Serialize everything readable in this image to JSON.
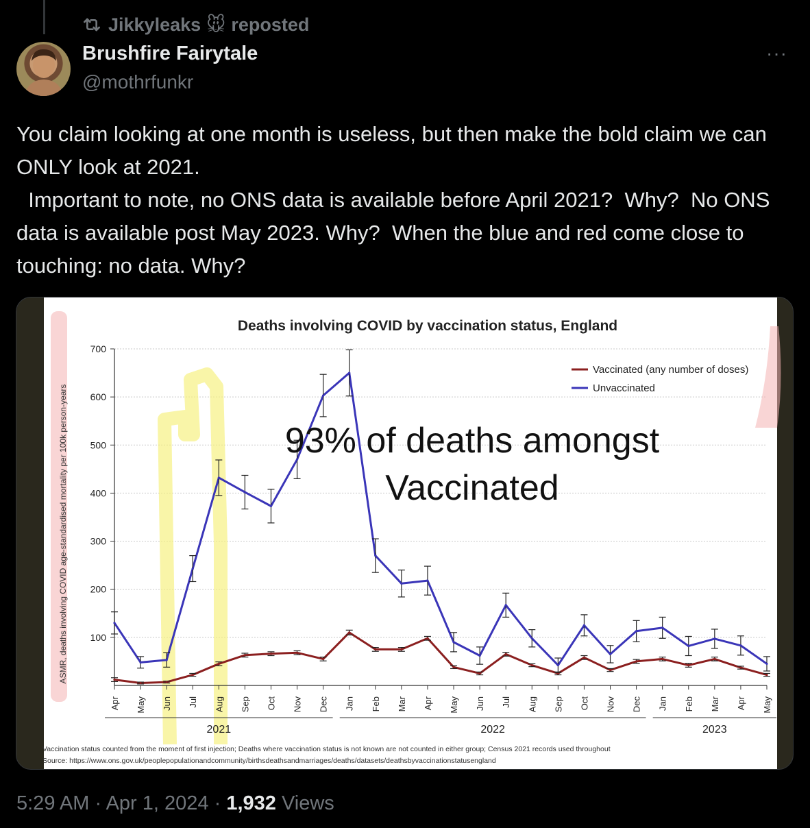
{
  "repost": {
    "icon": "repost-icon",
    "user": "Jikkyleaks",
    "emoji": "🐭",
    "label": "reposted"
  },
  "author": {
    "name": "Brushfire Fairytale",
    "handle": "@mothrfunkr"
  },
  "more_label": "···",
  "tweet_text": "You claim looking at one month is useless, but then make the bold claim we can ONLY look at 2021.\n  Important to note, no ONS data is available before April 2021?  Why?  No ONS data is available post May 2023. Why?  When the blue and red come close to touching: no data. Why?",
  "footer": {
    "time": "5:29 AM",
    "sep1": " · ",
    "date": "Apr 1, 2024",
    "sep2": " · ",
    "views": "1,932",
    "views_label": " Views"
  },
  "chart_data": {
    "type": "line",
    "title": "Deaths involving COVID by vaccination status, England",
    "ylabel": "ASMR, deaths involving COVID age-standardised mortality per 100k person-years",
    "ylim": [
      0,
      700
    ],
    "yticks": [
      "100",
      "200",
      "300",
      "400",
      "500",
      "600",
      "700"
    ],
    "categories": [
      "Apr",
      "May",
      "Jun",
      "Jul",
      "Aug",
      "Sep",
      "Oct",
      "Nov",
      "Dec",
      "Jan",
      "Feb",
      "Mar",
      "Apr",
      "May",
      "Jun",
      "Jul",
      "Aug",
      "Sep",
      "Oct",
      "Nov",
      "Dec",
      "Jan",
      "Feb",
      "Mar",
      "Apr",
      "May"
    ],
    "years": [
      "2021",
      "2022",
      "2023"
    ],
    "legend_position": "top-right",
    "series": [
      {
        "name": "Vaccinated (any number of doses)",
        "color": "#8b1f1f",
        "values": [
          12,
          5,
          7,
          22,
          45,
          63,
          66,
          68,
          55,
          110,
          75,
          75,
          98,
          38,
          25,
          65,
          42,
          25,
          58,
          32,
          50,
          55,
          42,
          55,
          37,
          22
        ]
      },
      {
        "name": "Unvaccinated",
        "color": "#3a35b8",
        "values": [
          130,
          48,
          53,
          243,
          432,
          402,
          373,
          470,
          603,
          650,
          270,
          212,
          218,
          90,
          62,
          167,
          98,
          42,
          125,
          65,
          113,
          120,
          82,
          97,
          83,
          45
        ]
      }
    ],
    "errors": {
      "vaccinated": [
        4,
        2,
        2,
        3,
        4,
        4,
        4,
        4,
        4,
        5,
        4,
        4,
        4,
        3,
        3,
        4,
        3,
        3,
        4,
        3,
        4,
        4,
        4,
        4,
        3,
        3
      ],
      "unvaccinated": [
        23,
        12,
        15,
        27,
        37,
        35,
        35,
        40,
        44,
        48,
        35,
        28,
        30,
        20,
        18,
        25,
        18,
        15,
        22,
        18,
        22,
        22,
        20,
        20,
        20,
        15
      ]
    },
    "annotation": [
      "93% of deaths amongst",
      "Vaccinated"
    ],
    "footnote": "Vaccination status counted from the moment of first injection; Deaths where vaccination status is not known are not counted in either group; Census 2021 records used throughout",
    "source": "Source: https://www.ons.gov.uk/peoplepopulationandcommunity/birthsdeathsandmarriages/deaths/datasets/deathsbyvaccinationstatusengland",
    "highlight_color": "#f6f07a",
    "grid": true
  }
}
